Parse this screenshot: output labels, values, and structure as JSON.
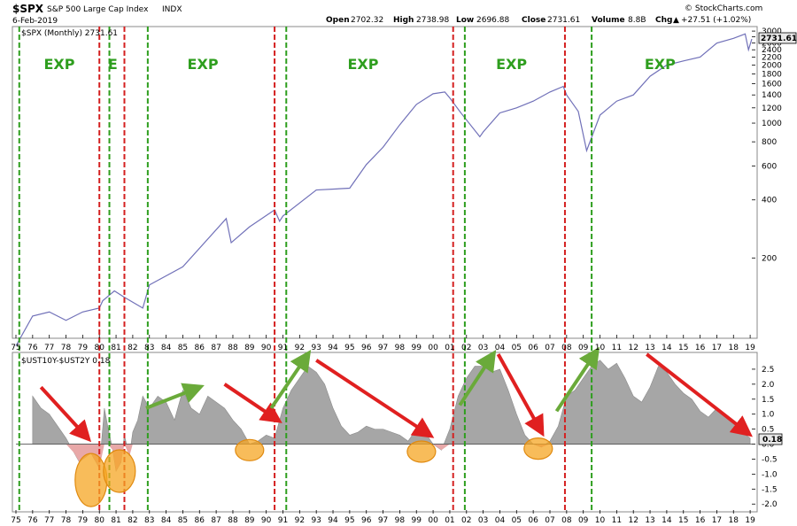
{
  "header": {
    "symbol": "$SPX",
    "name": "S&P 500 Large Cap Index",
    "exchange": "INDX",
    "date": "6-Feb-2019",
    "open_label": "Open",
    "open": "2702.32",
    "high_label": "High",
    "high": "2738.98",
    "low_label": "Low",
    "low": "2696.88",
    "close_label": "Close",
    "close": "2731.61",
    "volume_label": "Volume",
    "volume": "8.8B",
    "chg_label": "Chg",
    "chg": "+27.51 (+1.02%)",
    "up_arrow": "▲",
    "brand": "© StockCharts.com"
  },
  "colors": {
    "spx_line": "#7070b8",
    "spread_fill": "#a6a6a6",
    "inversion_fill": "#e8a8a8",
    "recession_line": "#d42020",
    "expansion_line": "#2e9e1e",
    "circle_fill": "#f5a623",
    "arrow_red": "#e02020",
    "arrow_green": "#6aaa3a",
    "last_value_box": "#e8e8e8"
  },
  "chart_data": [
    {
      "type": "line",
      "title": "$SPX (Monthly) 2731.61",
      "scale": "log",
      "ylim": [
        80,
        3100
      ],
      "y_ticks": [
        3000,
        2800,
        2600,
        2400,
        2200,
        2000,
        1800,
        1600,
        1400,
        1200,
        1000,
        800,
        600,
        400,
        200
      ],
      "last_value": "2731.61",
      "series": [
        {
          "x": [
            1975.0,
            1976.0,
            1977.0,
            1978.0,
            1979.0,
            1980.0,
            1980.2,
            1980.9,
            1981.5,
            1982.6,
            1983.0,
            1985.0,
            1987.6,
            1987.9,
            1989.0,
            1990.5,
            1990.8,
            1991.0,
            1993.0,
            1995.0,
            1996.0,
            1997.0,
            1998.0,
            1999.0,
            2000.0,
            2000.7,
            2001.0,
            2001.7,
            2002.8,
            2003.0,
            2004.0,
            2005.0,
            2006.0,
            2007.0,
            2007.8,
            2008.0,
            2008.7,
            2009.2,
            2010.0,
            2011.0,
            2012.0,
            2013.0,
            2014.0,
            2015.0,
            2016.0,
            2017.0,
            2018.0,
            2018.7,
            2018.9,
            2019.1
          ],
          "y": [
            70,
            100,
            105,
            95,
            105,
            110,
            120,
            135,
            125,
            110,
            145,
            180,
            320,
            240,
            290,
            355,
            310,
            330,
            450,
            460,
            610,
            750,
            980,
            1250,
            1420,
            1450,
            1350,
            1120,
            850,
            900,
            1130,
            1200,
            1300,
            1450,
            1550,
            1400,
            1150,
            720,
            1100,
            1300,
            1400,
            1750,
            2000,
            2100,
            2200,
            2600,
            2750,
            2900,
            2400,
            2731
          ]
        }
      ]
    },
    {
      "type": "area",
      "title": "$UST10Y-$UST2Y 0.18",
      "ylim": [
        -2.2,
        3.0
      ],
      "y_ticks": [
        2.5,
        2.0,
        1.5,
        1.0,
        0.5,
        0.0,
        -0.5,
        -1.0,
        -1.5,
        -2.0
      ],
      "last_value": "0.18",
      "series": [
        {
          "x": [
            1976.0,
            1976.5,
            1977.0,
            1977.5,
            1978.0,
            1978.5,
            1978.8,
            1979.0,
            1979.5,
            1980.0,
            1980.3,
            1980.5,
            1980.8,
            1981.0,
            1981.3,
            1981.5,
            1981.8,
            1982.0,
            1982.3,
            1982.6,
            1983.0,
            1983.5,
            1984.0,
            1984.5,
            1985.0,
            1985.5,
            1986.0,
            1986.5,
            1987.0,
            1987.5,
            1988.0,
            1988.5,
            1989.0,
            1989.5,
            1990.0,
            1990.5,
            1991.0,
            1991.5,
            1992.0,
            1992.5,
            1993.0,
            1993.5,
            1994.0,
            1994.5,
            1995.0,
            1995.5,
            1996.0,
            1996.5,
            1997.0,
            1997.5,
            1998.0,
            1998.5,
            1999.0,
            1999.5,
            2000.0,
            2000.5,
            2001.0,
            2001.5,
            2002.0,
            2002.5,
            2003.0,
            2003.5,
            2004.0,
            2004.5,
            2005.0,
            2005.5,
            2006.0,
            2006.5,
            2007.0,
            2007.5,
            2008.0,
            2008.5,
            2009.0,
            2009.5,
            2010.0,
            2010.5,
            2011.0,
            2011.5,
            2012.0,
            2012.5,
            2013.0,
            2013.5,
            2014.0,
            2014.5,
            2015.0,
            2015.5,
            2016.0,
            2016.5,
            2017.0,
            2017.5,
            2018.0,
            2018.5,
            2019.0
          ],
          "y": [
            1.6,
            1.2,
            1.0,
            0.6,
            0.2,
            -0.3,
            -0.6,
            -0.5,
            -0.3,
            -0.8,
            1.2,
            0.6,
            -0.2,
            -0.9,
            -0.6,
            0.3,
            -0.4,
            0.4,
            0.8,
            1.6,
            1.2,
            1.6,
            1.4,
            0.8,
            1.8,
            1.2,
            1.0,
            1.6,
            1.4,
            1.2,
            0.8,
            0.5,
            0.0,
            0.1,
            0.3,
            0.2,
            1.2,
            1.8,
            2.2,
            2.6,
            2.4,
            2.0,
            1.2,
            0.6,
            0.3,
            0.4,
            0.6,
            0.5,
            0.5,
            0.4,
            0.3,
            0.1,
            0.5,
            0.4,
            0.0,
            -0.2,
            0.5,
            1.6,
            2.2,
            2.6,
            2.6,
            2.4,
            2.5,
            1.8,
            1.0,
            0.3,
            0.0,
            -0.1,
            0.1,
            0.6,
            1.6,
            1.8,
            2.2,
            2.6,
            2.8,
            2.5,
            2.7,
            2.2,
            1.6,
            1.4,
            1.9,
            2.6,
            2.4,
            2.0,
            1.7,
            1.5,
            1.1,
            0.9,
            1.2,
            0.9,
            0.7,
            0.4,
            0.2
          ]
        }
      ]
    }
  ],
  "x_axis": {
    "start": 1975.0,
    "end": 2019.1,
    "labels": [
      "75",
      "76",
      "77",
      "78",
      "79",
      "80",
      "81",
      "82",
      "83",
      "84",
      "85",
      "86",
      "87",
      "88",
      "89",
      "90",
      "91",
      "92",
      "93",
      "94",
      "95",
      "96",
      "97",
      "98",
      "99",
      "00",
      "01",
      "02",
      "03",
      "04",
      "05",
      "06",
      "07",
      "08",
      "09",
      "10",
      "11",
      "12",
      "13",
      "14",
      "15",
      "16",
      "17",
      "18",
      "19"
    ]
  },
  "markers": {
    "recession_starts": [
      1980.0,
      1981.5,
      1990.5,
      2001.2,
      2007.9
    ],
    "expansion_starts": [
      1975.2,
      1980.6,
      1982.9,
      1991.2,
      2001.9,
      2009.5
    ]
  },
  "phase_labels": [
    {
      "text": "EXP",
      "x": 1977.6
    },
    {
      "text": "E",
      "x": 1980.8
    },
    {
      "text": "EXP",
      "x": 1986.2
    },
    {
      "text": "EXP",
      "x": 1995.8
    },
    {
      "text": "EXP",
      "x": 2004.7
    },
    {
      "text": "EXP",
      "x": 2013.6
    }
  ],
  "inversion_circles": [
    {
      "x": 1979.5,
      "y": -1.2
    },
    {
      "x": 1981.2,
      "y": -0.9
    },
    {
      "x": 1989.0,
      "y": -0.2
    },
    {
      "x": 1999.3,
      "y": -0.25
    },
    {
      "x": 2006.3,
      "y": -0.15
    }
  ],
  "trend_arrows": [
    {
      "color": "red",
      "x1": 1976.5,
      "y1": 1.9,
      "x2": 1979.3,
      "y2": 0.2
    },
    {
      "color": "green",
      "x1": 1982.8,
      "y1": 1.2,
      "x2": 1986.0,
      "y2": 1.9
    },
    {
      "color": "red",
      "x1": 1987.5,
      "y1": 2.0,
      "x2": 1990.7,
      "y2": 0.8
    },
    {
      "color": "green",
      "x1": 1990.3,
      "y1": 1.2,
      "x2": 1992.5,
      "y2": 3.0
    },
    {
      "color": "red",
      "x1": 1993.0,
      "y1": 2.8,
      "x2": 1999.8,
      "y2": 0.3
    },
    {
      "color": "green",
      "x1": 2001.6,
      "y1": 1.3,
      "x2": 2003.6,
      "y2": 3.0
    },
    {
      "color": "red",
      "x1": 2003.9,
      "y1": 3.0,
      "x2": 2006.5,
      "y2": 0.4
    },
    {
      "color": "green",
      "x1": 2007.4,
      "y1": 1.1,
      "x2": 2009.8,
      "y2": 3.1
    },
    {
      "color": "red",
      "x1": 2012.8,
      "y1": 3.0,
      "x2": 2018.9,
      "y2": 0.35
    }
  ]
}
